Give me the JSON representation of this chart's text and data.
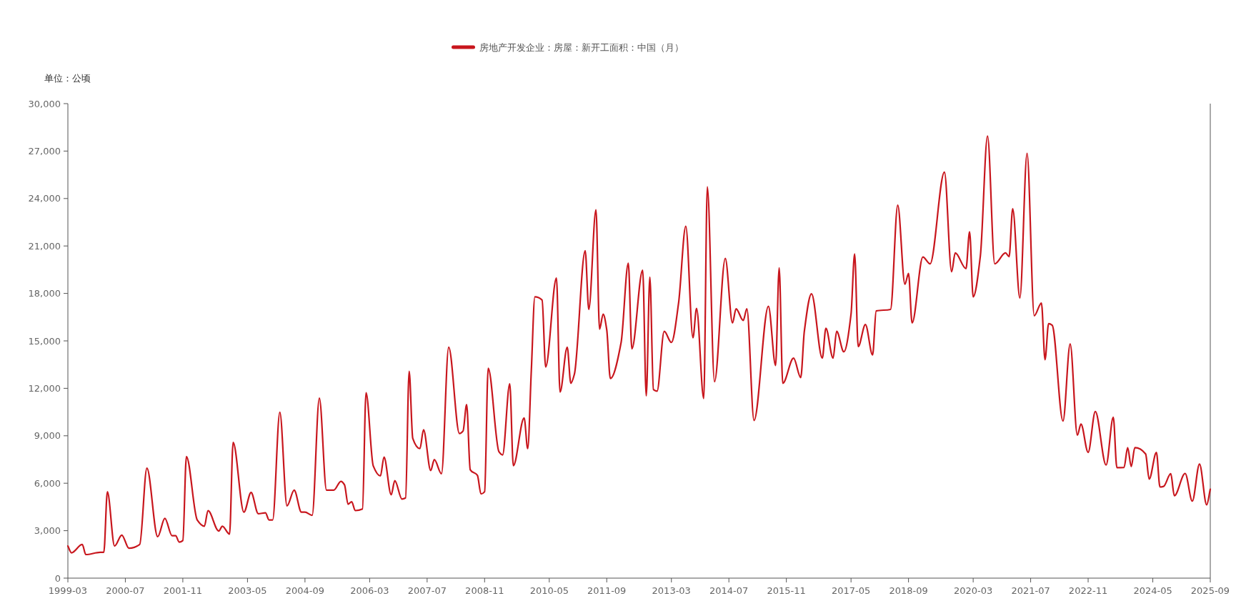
{
  "chart_data": {
    "type": "line",
    "ylabel": "单位：公顷",
    "legend": "top",
    "grid": false,
    "marker": "none",
    "line_style": "solid",
    "x": [
      "1999-03",
      "1999-04",
      "1999-07",
      "1999-08",
      "1999-12",
      "2000-01",
      "2000-02",
      "2000-04",
      "2000-06",
      "2000-08",
      "2000-11",
      "2001-01",
      "2001-04",
      "2001-06",
      "2001-08",
      "2001-09",
      "2001-10",
      "2001-11",
      "2001-12",
      "2002-03",
      "2002-05",
      "2002-06",
      "2002-09",
      "2002-10",
      "2002-12",
      "2003-01",
      "2003-04",
      "2003-06",
      "2003-08",
      "2003-10",
      "2003-11",
      "2003-12",
      "2004-02",
      "2004-04",
      "2004-06",
      "2004-08",
      "2004-09",
      "2004-11",
      "2005-01",
      "2005-03",
      "2005-05",
      "2005-07",
      "2005-08",
      "2005-09",
      "2005-10",
      "2005-11",
      "2006-01",
      "2006-02",
      "2006-04",
      "2006-06",
      "2006-07",
      "2006-09",
      "2006-10",
      "2006-12",
      "2007-01",
      "2007-02",
      "2007-03",
      "2007-05",
      "2007-06",
      "2007-08",
      "2007-09",
      "2007-11",
      "2008-01",
      "2008-04",
      "2008-05",
      "2008-06",
      "2008-07",
      "2008-09",
      "2008-10",
      "2008-11",
      "2008-12",
      "2009-03",
      "2009-04",
      "2009-06",
      "2009-07",
      "2009-10",
      "2009-11",
      "2009-12",
      "2010-01",
      "2010-03",
      "2010-04",
      "2010-07",
      "2010-08",
      "2010-10",
      "2010-11",
      "2010-12",
      "2011-03",
      "2011-04",
      "2011-06",
      "2011-07",
      "2011-08",
      "2011-09",
      "2011-10",
      "2012-01",
      "2012-03",
      "2012-04",
      "2012-07",
      "2012-08",
      "2012-09",
      "2012-10",
      "2012-11",
      "2013-01",
      "2013-03",
      "2013-05",
      "2013-07",
      "2013-09",
      "2013-10",
      "2013-12",
      "2014-01",
      "2014-03",
      "2014-06",
      "2014-08",
      "2014-09",
      "2014-11",
      "2014-12",
      "2015-02",
      "2015-06",
      "2015-08",
      "2015-09",
      "2015-10",
      "2016-01",
      "2016-03",
      "2016-04",
      "2016-06",
      "2016-09",
      "2016-10",
      "2016-12",
      "2017-01",
      "2017-03",
      "2017-05",
      "2017-06",
      "2017-07",
      "2017-09",
      "2017-11",
      "2017-12",
      "2018-04",
      "2018-06",
      "2018-08",
      "2018-09",
      "2018-10",
      "2019-01",
      "2019-03",
      "2019-07",
      "2019-09",
      "2019-10",
      "2020-01",
      "2020-02",
      "2020-03",
      "2020-05",
      "2020-07",
      "2020-09",
      "2020-12",
      "2021-01",
      "2021-02",
      "2021-04",
      "2021-06",
      "2021-08",
      "2021-10",
      "2021-11",
      "2021-12",
      "2022-01",
      "2022-04",
      "2022-06",
      "2022-08",
      "2022-09",
      "2022-11",
      "2023-01",
      "2023-04",
      "2023-06",
      "2023-07",
      "2023-09",
      "2023-10",
      "2023-11",
      "2023-12",
      "2024-03",
      "2024-04",
      "2024-06",
      "2024-07",
      "2024-08",
      "2024-10",
      "2024-11",
      "2025-02",
      "2025-04",
      "2025-06",
      "2025-08",
      "2025-09"
    ],
    "xlim": [
      "1999-03",
      "2025-09"
    ],
    "xticks": [
      "1999-03",
      "2000-07",
      "2001-11",
      "2003-05",
      "2004-09",
      "2006-03",
      "2007-07",
      "2008-11",
      "2010-05",
      "2011-09",
      "2013-03",
      "2014-07",
      "2015-11",
      "2017-05",
      "2018-09",
      "2020-03",
      "2021-07",
      "2022-11",
      "2024-05",
      "2025-09"
    ],
    "ylim": [
      0,
      30000
    ],
    "yticks": [
      0,
      {
        "value": 3000,
        "label": "3,000"
      },
      {
        "value": 6000,
        "label": "6,000"
      },
      {
        "value": 9000,
        "label": "9,000"
      },
      {
        "value": 12000,
        "label": "12,000"
      },
      {
        "value": 15000,
        "label": "15,000"
      },
      {
        "value": 18000,
        "label": "18,000"
      },
      {
        "value": 21000,
        "label": "21,000"
      },
      {
        "value": 24000,
        "label": "24,000"
      },
      {
        "value": 27000,
        "label": "27,000"
      },
      {
        "value": 30000,
        "label": "30,000"
      }
    ],
    "series": [
      {
        "name": "房地产开发企业：房屋：新开工面积：中国（月）",
        "color": "#c8161d",
        "values": [
          2030,
          1600,
          2130,
          1490,
          1630,
          1630,
          5460,
          2030,
          2720,
          1890,
          2130,
          6950,
          2620,
          3780,
          2680,
          2680,
          2280,
          2380,
          7690,
          3680,
          3280,
          4270,
          2980,
          3280,
          2780,
          8580,
          4170,
          5420,
          4070,
          4130,
          3680,
          3680,
          10490,
          4570,
          5560,
          4170,
          4170,
          3970,
          11380,
          5560,
          5560,
          6120,
          5900,
          4670,
          4830,
          4270,
          4370,
          11720,
          7100,
          6460,
          7650,
          5270,
          6160,
          5000,
          5070,
          13070,
          8840,
          8190,
          9380,
          6800,
          7490,
          6600,
          14600,
          9140,
          9300,
          10970,
          6850,
          6500,
          5320,
          5460,
          13270,
          7990,
          7790,
          12280,
          7110,
          10130,
          8190,
          13100,
          17780,
          17580,
          13350,
          18970,
          11760,
          14600,
          12320,
          12900,
          20700,
          16990,
          23290,
          15740,
          16690,
          15700,
          12620,
          14900,
          19910,
          14500,
          19470,
          11520,
          19030,
          11920,
          11820,
          15600,
          14900,
          17400,
          22250,
          15200,
          17050,
          11360,
          24740,
          12420,
          20210,
          16130,
          17030,
          16290,
          17030,
          9970,
          17190,
          13450,
          19610,
          12320,
          13910,
          12680,
          15600,
          17980,
          13910,
          15800,
          13910,
          15600,
          14310,
          16690,
          20500,
          14640,
          16030,
          14110,
          16890,
          16990,
          23580,
          18580,
          19270,
          16130,
          20300,
          19870,
          25670,
          19370,
          20560,
          19570,
          21900,
          17780,
          20370,
          27950,
          19870,
          20560,
          20330,
          23350,
          17720,
          26860,
          16590,
          17390,
          13810,
          16090,
          15990,
          9930,
          14800,
          9040,
          9740,
          7950,
          10530,
          7150,
          10170,
          6990,
          7000,
          8250,
          7050,
          8250,
          7850,
          6260,
          7950,
          5760,
          5800,
          6600,
          5210,
          6620,
          4870,
          7210,
          4630,
          5620
        ]
      }
    ]
  }
}
